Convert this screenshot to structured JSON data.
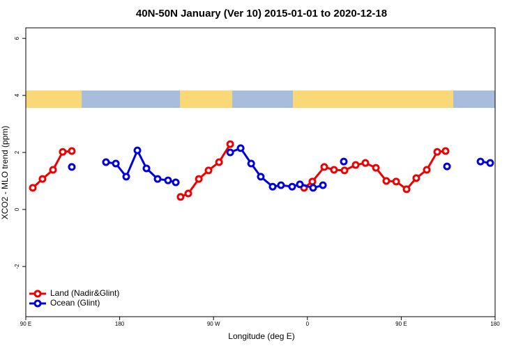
{
  "chart_data": {
    "type": "line",
    "title": "40N-50N January (Ver 10)   2015-01-01 to 2020-12-18",
    "x_label": "Longitude (deg E)",
    "y_label": "XCO2 - MLO trend (ppm)",
    "xlim": [
      90,
      540
    ],
    "xticks": [
      {
        "value": 90,
        "label": "90 E"
      },
      180,
      {
        "value": 270,
        "label": "90 W"
      },
      {
        "value": 360,
        "label": "0"
      },
      {
        "value": 450,
        "label": "90 E"
      },
      {
        "value": 540,
        "label": "180"
      }
    ],
    "ylim": [
      -3.76,
      6.37
    ],
    "yticks": [
      -2,
      0,
      2,
      4,
      6
    ],
    "legend": "bottom-left",
    "series": [
      {
        "name": "Land (Nadir&Glint)",
        "color": "#ee0000",
        "x": [
          96.7,
          106.0,
          116.1,
          125.4,
          134.1,
          null,
          238.4,
          245.8,
          255.9,
          265.2,
          275.3,
          286.0,
          null,
          356.8,
          364.8,
          376.2,
          385.5,
          395.6,
          406.3,
          415.6,
          425.7,
          435.7,
          445.1,
          455.1,
          464.4,
          474.5,
          484.5,
          492.5
        ],
        "values": [
          0.76,
          1.07,
          1.39,
          2.02,
          2.05,
          null,
          0.44,
          0.56,
          1.07,
          1.37,
          1.66,
          2.29,
          null,
          0.76,
          0.98,
          1.49,
          1.39,
          1.37,
          1.56,
          1.63,
          1.46,
          1.0,
          0.98,
          0.71,
          1.1,
          1.39,
          2.02,
          2.05
        ]
      },
      {
        "name": "Ocean (Glint)",
        "color": "#0000dd",
        "x": [
          134.1,
          null,
          166.9,
          176.3,
          186.3,
          197.0,
          205.7,
          216.4,
          226.4,
          233.8,
          null,
          286.0,
          296.0,
          306.1,
          315.3,
          326.7,
          334.7,
          345.4,
          352.8,
          365.5,
          374.9,
          null,
          394.9,
          null,
          493.9,
          null,
          526.0,
          535.3
        ],
        "values": [
          1.49,
          null,
          1.66,
          1.61,
          1.15,
          2.07,
          1.44,
          1.07,
          1.02,
          0.95,
          null,
          2.0,
          2.15,
          1.61,
          1.15,
          0.8,
          0.85,
          0.8,
          0.88,
          0.76,
          0.85,
          null,
          1.68,
          null,
          1.51,
          null,
          1.68,
          1.63
        ]
      }
    ]
  }
}
